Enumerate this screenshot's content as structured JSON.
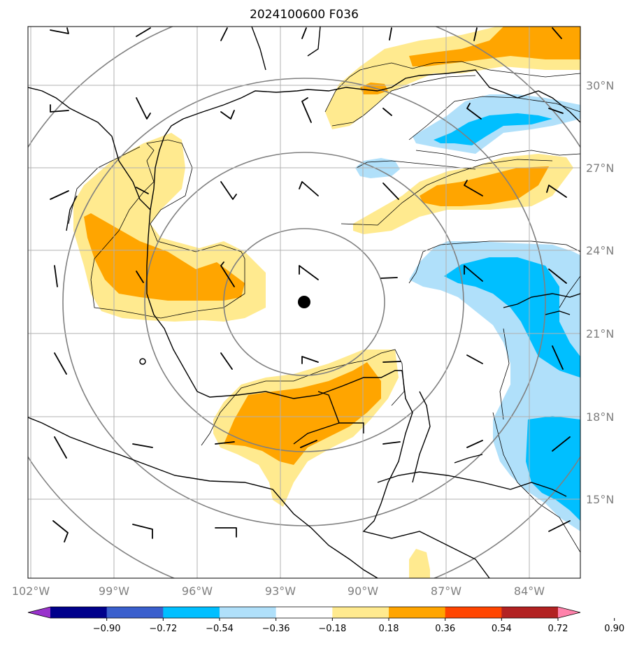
{
  "title": "2024100600 F036",
  "lat_labels": [
    "30°N",
    "27°N",
    "24°N",
    "21°N",
    "18°N",
    "15°N"
  ],
  "lon_labels": [
    "102°W",
    "99°W",
    "96°W",
    "93°W",
    "90°W",
    "87°W",
    "84°W"
  ],
  "colorbar": {
    "ticks": [
      "−0.90",
      "−0.72",
      "−0.54",
      "−0.36",
      "−0.18",
      "0.18",
      "0.36",
      "0.54",
      "0.72",
      "0.90"
    ],
    "colors": [
      "#9932cc",
      "#00008b",
      "#3a5fcd",
      "#00bfff",
      "#b0e0fa",
      "#ffffff",
      "#ffea8f",
      "#ffa500",
      "#ff4500",
      "#b22222",
      "#ff82ab"
    ]
  },
  "map": {
    "extent": {
      "lon_min": -102.1,
      "lon_max": -82.3,
      "lat_min": 12.3,
      "lat_max": 32.0
    },
    "grid": true,
    "center_marker": {
      "lon": -92.8,
      "lat": 22.1
    },
    "fill_colors": {
      "positive_1": "#ffea8f",
      "positive_2": "#ffa500",
      "negative_1": "#b0e0fa",
      "negative_2": "#00bfff"
    },
    "range_ring_color": "#808080",
    "coastline_color": "#000000"
  }
}
